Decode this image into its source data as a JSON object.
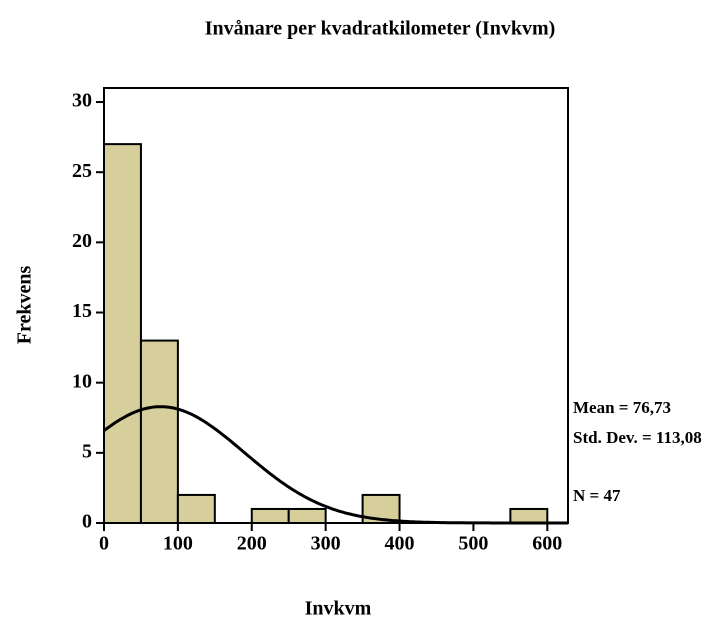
{
  "chart_data": {
    "type": "histogram",
    "title": "Invånare per kvadratkilometer (Invkvm)",
    "x_label": "Invkvm",
    "y_label": "Frekvens",
    "bins": [
      0,
      50,
      100,
      150,
      200,
      250,
      300,
      350,
      400,
      450,
      500,
      550,
      600
    ],
    "values": [
      27,
      13,
      2,
      0,
      1,
      1,
      0,
      2,
      0,
      0,
      0,
      1
    ],
    "color": "#d6cf9c",
    "xlim": [
      0,
      628
    ],
    "ylim": [
      0,
      31
    ],
    "xticks": [
      0,
      100,
      200,
      300,
      400,
      500,
      600
    ],
    "yticks": [
      0,
      5,
      10,
      15,
      20,
      25,
      30
    ],
    "normal_curve": true,
    "stats": {
      "mean": {
        "value": 76.73,
        "label": "Mean = 76,73"
      },
      "sd": {
        "value": 113.08,
        "label": "Std. Dev. = 113,08"
      },
      "n": {
        "value": 47,
        "label": "N = 47"
      }
    }
  }
}
